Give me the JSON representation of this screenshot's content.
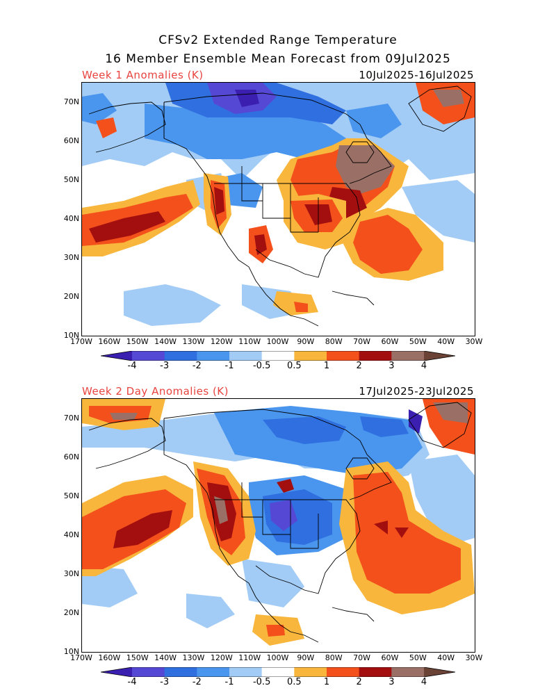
{
  "title_line1": "CFSv2 Extended Range Temperature",
  "title_line2": "16 Member Ensemble Mean Forecast from 09Jul2025",
  "panels": [
    {
      "label": "Week 1 Anomalies (K)",
      "dates": "10Jul2025-16Jul2025"
    },
    {
      "label": "Week 2 Day Anomalies (K)",
      "dates": "17Jul2025-23Jul2025"
    }
  ],
  "lat_labels": [
    "70N",
    "60N",
    "50N",
    "40N",
    "30N",
    "20N",
    "10N"
  ],
  "lon_labels": [
    "170W",
    "160W",
    "150W",
    "140W",
    "130W",
    "120W",
    "110W",
    "100W",
    "90W",
    "80W",
    "70W",
    "60W",
    "50W",
    "40W",
    "30W"
  ],
  "colorbar": {
    "labels": [
      "-4",
      "-3",
      "-2",
      "-1",
      "-0.5",
      "0.5",
      "1",
      "2",
      "3",
      "4"
    ],
    "colors": [
      "#3b1fb0",
      "#5548d4",
      "#2f6fe0",
      "#4a95ee",
      "#a2ccf6",
      "#ffffff",
      "#f8b73c",
      "#f4501b",
      "#a30f0f",
      "#9a7066",
      "#6b4236"
    ]
  }
}
